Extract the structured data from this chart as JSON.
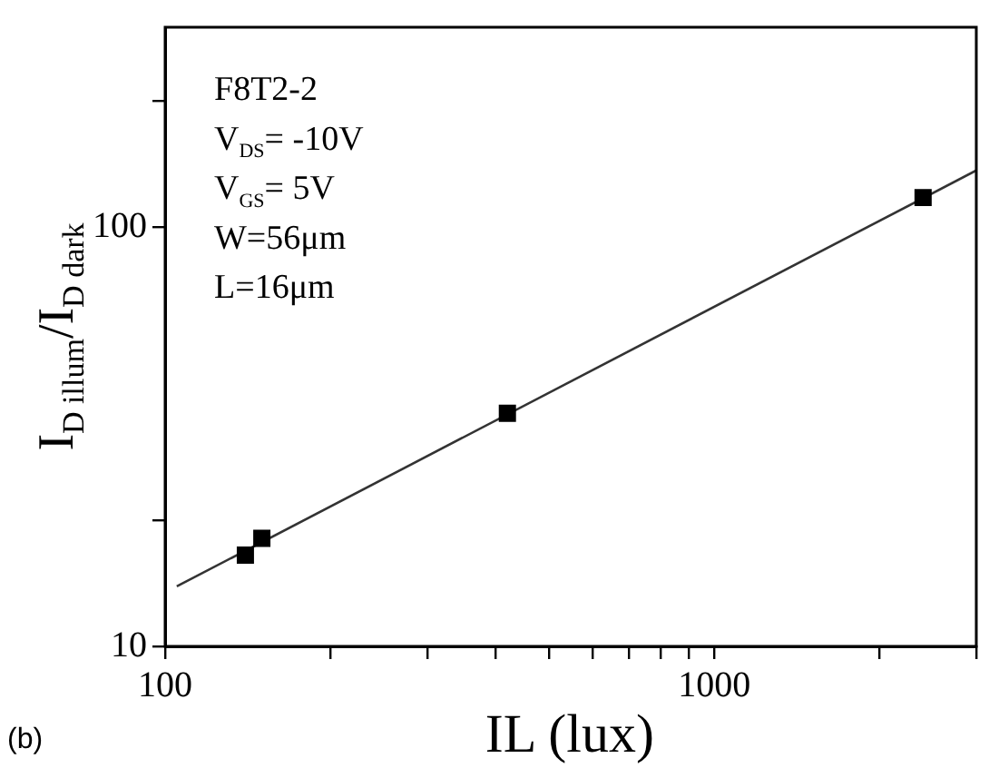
{
  "chart_data": {
    "type": "scatter",
    "xlabel": "IL (lux)",
    "ylabel": "I$_{D illum}$/I$_{D dark}$",
    "log": "xy",
    "xlim": [
      100,
      3000
    ],
    "ylim": [
      10,
      300
    ],
    "xticks": [
      100,
      {
        "value": 200,
        "label": null
      },
      {
        "value": 300,
        "label": null
      },
      {
        "value": 400,
        "label": null
      },
      {
        "value": 500,
        "label": null
      },
      {
        "value": 600,
        "label": null
      },
      {
        "value": 700,
        "label": null
      },
      {
        "value": 800,
        "label": null
      },
      {
        "value": 900,
        "label": null
      },
      1000,
      {
        "value": 2000,
        "label": null
      },
      {
        "value": 3000,
        "label": null
      }
    ],
    "yticks": [
      10,
      {
        "value": 20,
        "label": null
      },
      100,
      {
        "value": 200,
        "label": null
      }
    ],
    "grid": false,
    "legend": false,
    "marker": "square",
    "line_style": "solid",
    "series": [
      {
        "type": "scatter",
        "color": "#000000",
        "x": [
          140,
          150,
          420,
          2400
        ],
        "values": [
          16.5,
          18.1,
          36,
          117.7
        ]
      },
      {
        "type": "line",
        "color": "#333333",
        "marker": "none",
        "x": [
          105,
          3000
        ],
        "values": [
          13.9,
          136.6
        ]
      }
    ],
    "annotations": [
      "F8T2-2",
      "V$_{DS}$= -10V",
      "V$_{GS}$= 5V",
      "W=56μm",
      "L=16μm",
      "(b)"
    ]
  }
}
